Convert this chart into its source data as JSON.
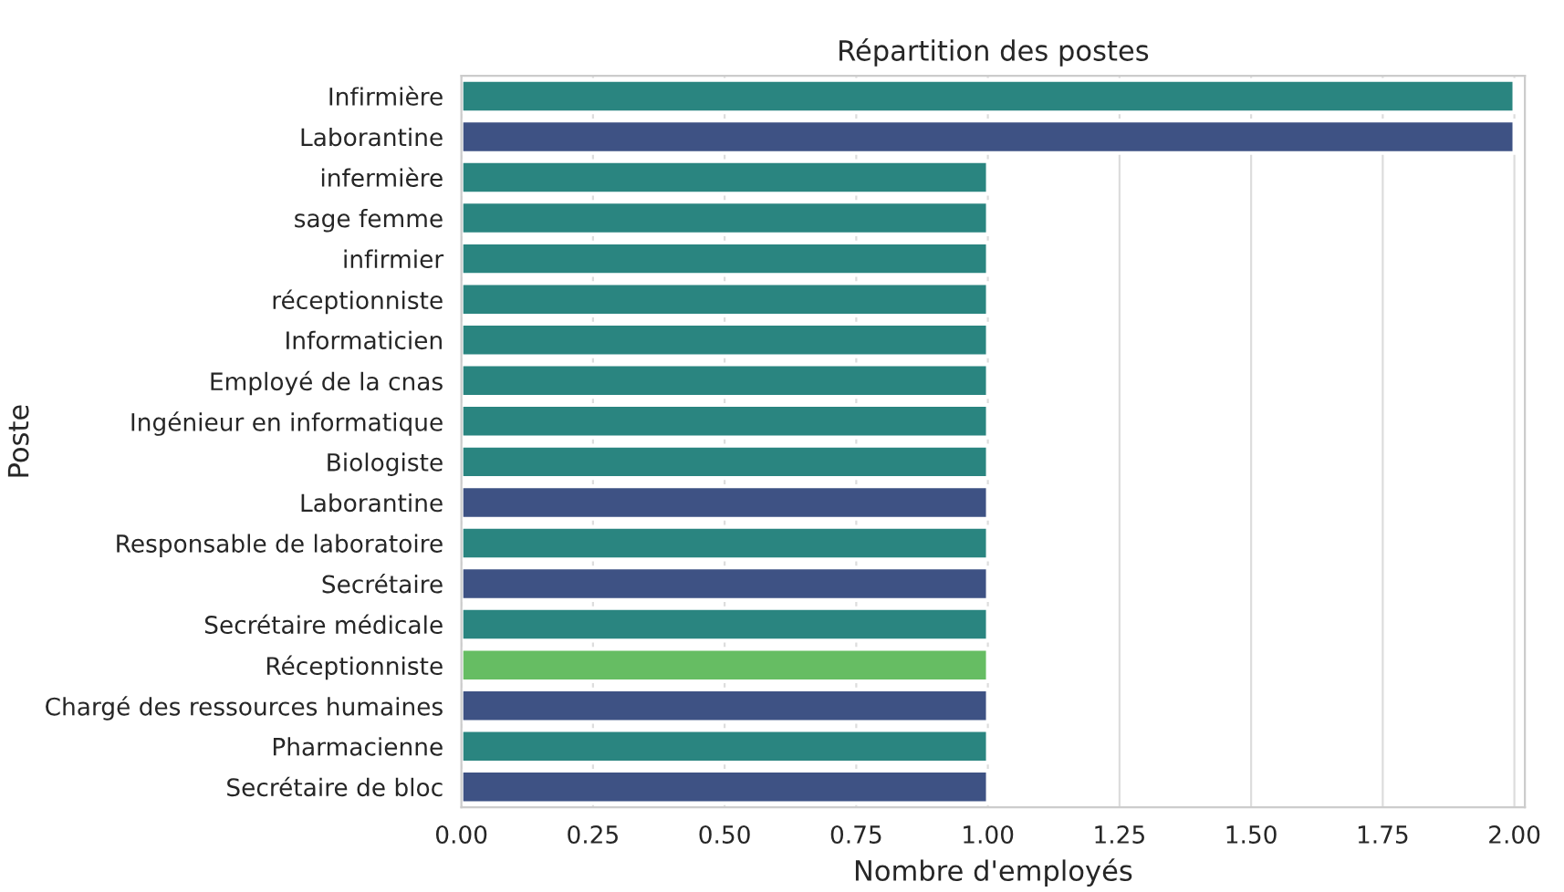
{
  "chart_data": {
    "type": "bar",
    "orientation": "horizontal",
    "title": "Répartition des postes",
    "xlabel": "Nombre d'employés",
    "ylabel": "Poste",
    "categories": [
      "Infirmière",
      "Laborantine",
      "infermière",
      "sage femme",
      "infirmier",
      "réceptionniste",
      "Informaticien",
      "Employé de la cnas",
      "Ingénieur en informatique",
      "Biologiste",
      "Laborantine",
      "Responsable de laboratoire",
      "Secrétaire",
      "Secrétaire médicale",
      "Réceptionniste",
      "Chargé des ressources humaines",
      "Pharmacienne",
      "Secrétaire de bloc"
    ],
    "values": [
      2,
      2,
      1,
      1,
      1,
      1,
      1,
      1,
      1,
      1,
      1,
      1,
      1,
      1,
      1,
      1,
      1,
      1
    ],
    "colors": [
      "#2a8580",
      "#3e5284",
      "#2a8580",
      "#2a8580",
      "#2a8580",
      "#2a8580",
      "#2a8580",
      "#2a8580",
      "#2a8580",
      "#2a8580",
      "#3e5284",
      "#2a8580",
      "#3e5284",
      "#2a8580",
      "#66bd63",
      "#3e5284",
      "#2a8580",
      "#3e5284"
    ],
    "xlim": [
      0,
      2.02
    ],
    "xticks": [
      {
        "value": 0,
        "label": "0.00"
      },
      {
        "value": 0.25,
        "label": "0.25"
      },
      {
        "value": 0.5,
        "label": "0.50"
      },
      {
        "value": 0.75,
        "label": "0.75"
      },
      {
        "value": 1,
        "label": "1.00"
      },
      {
        "value": 1.25,
        "label": "1.25"
      },
      {
        "value": 1.5,
        "label": "1.50"
      },
      {
        "value": 1.75,
        "label": "1.75"
      },
      {
        "value": 2,
        "label": "2.00"
      }
    ],
    "grid": "x"
  }
}
